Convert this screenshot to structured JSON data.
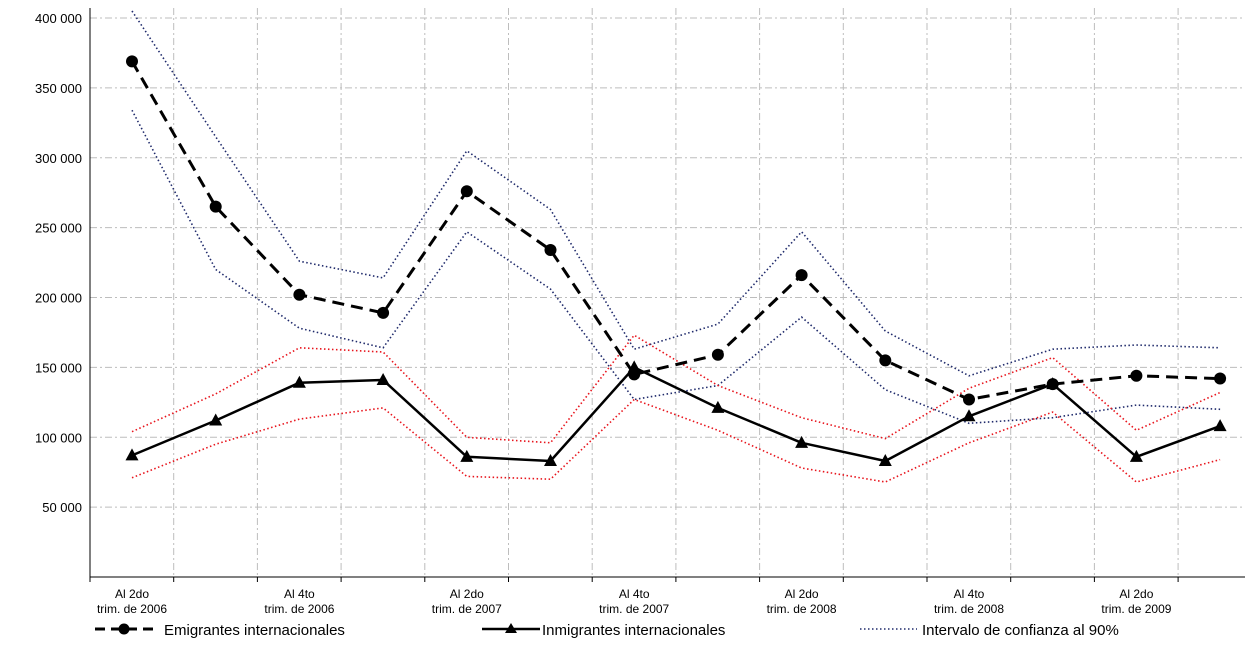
{
  "chart_data": {
    "type": "line",
    "title": "",
    "xlabel": "",
    "ylabel": "",
    "ylim": [
      0,
      400000
    ],
    "yticks": [
      50000,
      100000,
      150000,
      200000,
      250000,
      300000,
      350000,
      400000
    ],
    "ytick_labels": [
      "50 000",
      "100 000",
      "150 000",
      "200 000",
      "250 000",
      "300 000",
      "350 000",
      "400 000"
    ],
    "n_points": 14,
    "category_labels": [
      {
        "index": 0,
        "lines": [
          "Al 2do",
          "trim. de 2006"
        ]
      },
      {
        "index": 2,
        "lines": [
          "Al 4to",
          "trim. de 2006"
        ]
      },
      {
        "index": 4,
        "lines": [
          "Al 2do",
          "trim. de 2007"
        ]
      },
      {
        "index": 6,
        "lines": [
          "Al 4to",
          "trim. de 2007"
        ]
      },
      {
        "index": 8,
        "lines": [
          "Al 2do",
          "trim. de 2008"
        ]
      },
      {
        "index": 10,
        "lines": [
          "Al 4to",
          "trim. de 2008"
        ]
      },
      {
        "index": 12,
        "lines": [
          "Al 2do",
          "trim. de 2009"
        ]
      }
    ],
    "series": [
      {
        "name": "Emigrantes internacionales",
        "style": "dashed",
        "marker": "circle",
        "color": "#000000",
        "values": [
          369000,
          265000,
          202000,
          189000,
          276000,
          234000,
          145000,
          159000,
          216000,
          155000,
          127000,
          138000,
          144000,
          142000
        ]
      },
      {
        "name": "Inmigrantes internacionales",
        "style": "solid",
        "marker": "triangle",
        "color": "#000000",
        "values": [
          87000,
          112000,
          139000,
          141000,
          86000,
          83000,
          150000,
          121000,
          96000,
          83000,
          115000,
          138000,
          86000,
          108000
        ]
      },
      {
        "name": "Intervalo de confianza al 90%",
        "style": "dotted",
        "color": "#1f2a6b",
        "upper": [
          405000,
          315000,
          226000,
          214000,
          305000,
          263000,
          163000,
          181000,
          247000,
          176000,
          144000,
          163000,
          166000,
          164000
        ],
        "lower": [
          334000,
          220000,
          178000,
          164000,
          247000,
          206000,
          127000,
          137000,
          186000,
          134000,
          110000,
          114000,
          123000,
          120000
        ]
      },
      {
        "style": "dotted",
        "color": "#e8141c",
        "upper": [
          104000,
          131000,
          164000,
          161000,
          100000,
          96000,
          173000,
          137000,
          114000,
          99000,
          135000,
          157000,
          105000,
          132000
        ],
        "lower": [
          71000,
          95000,
          113000,
          121000,
          72000,
          70000,
          127000,
          105000,
          78000,
          68000,
          96000,
          118000,
          68000,
          84000
        ]
      }
    ],
    "grid": true,
    "legend_position": "bottom"
  }
}
